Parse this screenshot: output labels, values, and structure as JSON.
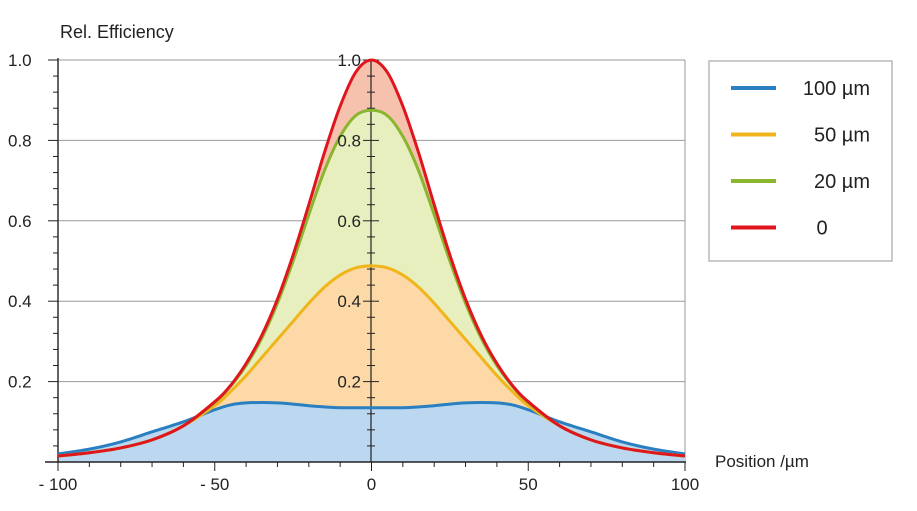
{
  "chart_data": {
    "type": "area",
    "title": "Rel. Efficiency",
    "xlabel": "Position /µm",
    "ylabel": "Rel. Efficiency",
    "xlim": [
      -100,
      100
    ],
    "ylim": [
      0,
      1.0
    ],
    "x_ticks": [
      -100,
      -50,
      0,
      50,
      100
    ],
    "x_tick_labels": [
      "- 100",
      "- 50",
      "0",
      "50",
      "100"
    ],
    "y_ticks": [
      0.2,
      0.4,
      0.6,
      0.8,
      1.0
    ],
    "y_tick_labels": [
      "0.2",
      "0.4",
      "0.6",
      "0.8",
      "1.0"
    ],
    "center_axis_labels": [
      "0.2",
      "0.4",
      "0.6",
      "0.8",
      "1.0"
    ],
    "grid": true,
    "legend_position": "right",
    "x": [
      -100,
      -90,
      -80,
      -70,
      -60,
      -50,
      -45,
      -40,
      -35,
      -30,
      -25,
      -20,
      -15,
      -10,
      -5,
      0,
      5,
      10,
      15,
      20,
      25,
      30,
      35,
      40,
      45,
      50,
      60,
      70,
      80,
      90,
      100
    ],
    "series": [
      {
        "name": "0",
        "legend_label": "0",
        "color": "#e0161e",
        "fill": "#f6c2ad",
        "values": [
          0.015,
          0.023,
          0.035,
          0.055,
          0.09,
          0.15,
          0.19,
          0.245,
          0.315,
          0.405,
          0.515,
          0.64,
          0.77,
          0.885,
          0.97,
          1.0,
          0.97,
          0.885,
          0.77,
          0.64,
          0.515,
          0.405,
          0.315,
          0.245,
          0.19,
          0.15,
          0.09,
          0.055,
          0.035,
          0.023,
          0.015
        ]
      },
      {
        "name": "20 µm",
        "legend_label": "20 µm",
        "color": "#8ab52e",
        "fill": "#e8efbe",
        "values": [
          0.015,
          0.023,
          0.035,
          0.055,
          0.09,
          0.148,
          0.188,
          0.24,
          0.308,
          0.395,
          0.5,
          0.615,
          0.725,
          0.81,
          0.862,
          0.875,
          0.862,
          0.81,
          0.725,
          0.615,
          0.5,
          0.395,
          0.308,
          0.24,
          0.188,
          0.148,
          0.09,
          0.055,
          0.035,
          0.023,
          0.015
        ]
      },
      {
        "name": "50 µm",
        "legend_label": "50 µm",
        "color": "#f1b51c",
        "fill": "#fcd9a6",
        "values": [
          0.015,
          0.023,
          0.035,
          0.055,
          0.09,
          0.14,
          0.175,
          0.215,
          0.26,
          0.305,
          0.35,
          0.395,
          0.435,
          0.465,
          0.483,
          0.488,
          0.483,
          0.465,
          0.435,
          0.395,
          0.35,
          0.305,
          0.26,
          0.215,
          0.175,
          0.14,
          0.09,
          0.055,
          0.035,
          0.023,
          0.015
        ]
      },
      {
        "name": "100 µm",
        "legend_label": "100 µm",
        "color": "#2a7fc1",
        "fill": "#bcd8f0",
        "values": [
          0.02,
          0.032,
          0.05,
          0.075,
          0.1,
          0.13,
          0.142,
          0.147,
          0.148,
          0.147,
          0.144,
          0.14,
          0.137,
          0.135,
          0.135,
          0.135,
          0.135,
          0.135,
          0.137,
          0.14,
          0.144,
          0.147,
          0.148,
          0.147,
          0.142,
          0.13,
          0.1,
          0.075,
          0.05,
          0.032,
          0.02
        ]
      }
    ],
    "legend_order": [
      "100 µm",
      "50 µm",
      "20 µm",
      "0"
    ]
  }
}
